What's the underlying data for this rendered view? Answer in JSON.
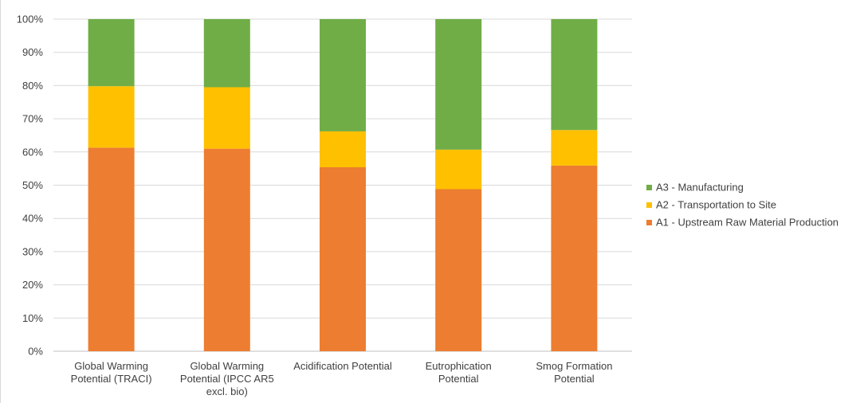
{
  "chart_data": {
    "type": "bar",
    "stacked": true,
    "percent": true,
    "categories": [
      [
        "Global Warming",
        "Potential (TRACI)"
      ],
      [
        "Global Warming",
        "Potential (IPCC AR5",
        "excl. bio)"
      ],
      [
        "Acidification Potential"
      ],
      [
        "Eutrophication",
        "Potential"
      ],
      [
        "Smog Formation",
        "Potential"
      ]
    ],
    "series": [
      {
        "name": "A1 - Upstream Raw Material Production",
        "color": "#ED7D31",
        "values": [
          61.3,
          61.0,
          55.4,
          48.8,
          55.9
        ]
      },
      {
        "name": "A2 - Transportation to Site",
        "color": "#FFC000",
        "values": [
          18.5,
          18.5,
          10.8,
          11.9,
          10.7
        ]
      },
      {
        "name": "A3 - Manufacturing",
        "color": "#70AD47",
        "values": [
          20.2,
          20.5,
          33.8,
          39.3,
          33.4
        ]
      }
    ],
    "ylim": [
      0,
      100
    ],
    "yticks": [
      "0%",
      "10%",
      "20%",
      "30%",
      "40%",
      "50%",
      "60%",
      "70%",
      "80%",
      "90%",
      "100%"
    ],
    "grid": true,
    "legend_position": "right",
    "legend_order": [
      2,
      1,
      0
    ]
  }
}
